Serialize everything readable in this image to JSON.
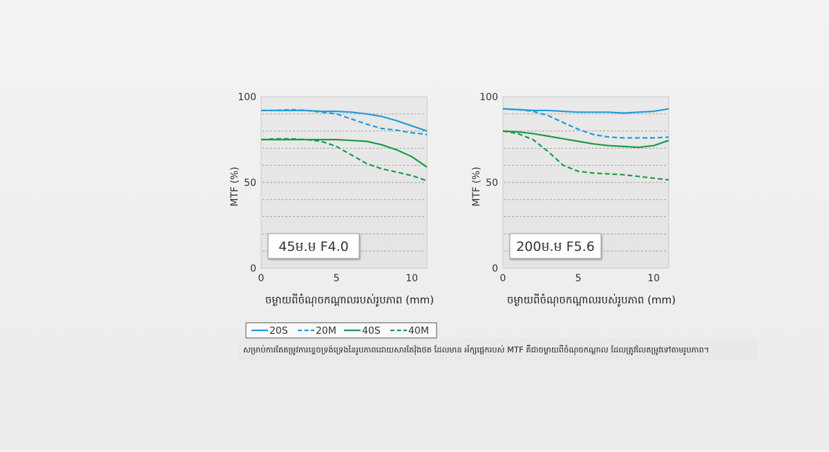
{
  "chart_data": [
    {
      "type": "line",
      "title": "45ម.ម F4.0",
      "xlabel": "ចម្ងាយពីចំណុចកណ្ដាលរបស់រូបភាព (mm)",
      "ylabel": "MTF (%)",
      "xlim": [
        0,
        11
      ],
      "ylim": [
        0,
        100
      ],
      "xticks": [
        "0",
        "5",
        "10"
      ],
      "yticks": [
        "0",
        "50",
        "100"
      ],
      "grid": true,
      "series": [
        {
          "name": "20S",
          "style": "solid",
          "color": "#1f9bd7",
          "x": [
            0,
            1,
            2,
            3,
            4,
            5,
            6,
            7,
            8,
            9,
            10,
            11
          ],
          "y": [
            92,
            92,
            92,
            92,
            91.5,
            91.5,
            91,
            90,
            88.5,
            86,
            83,
            80
          ]
        },
        {
          "name": "20M",
          "style": "dashed",
          "color": "#1f9bd7",
          "x": [
            0,
            1,
            2,
            3,
            4,
            5,
            6,
            7,
            8,
            9,
            10,
            11
          ],
          "y": [
            92,
            92,
            92.5,
            92,
            91,
            90,
            87,
            84,
            81.5,
            80.5,
            79,
            78
          ]
        },
        {
          "name": "40S",
          "style": "solid",
          "color": "#1a9a46",
          "x": [
            0,
            1,
            2,
            3,
            4,
            5,
            6,
            7,
            8,
            9,
            10,
            11
          ],
          "y": [
            75,
            75,
            75,
            75,
            75,
            75,
            74.5,
            74,
            72,
            69,
            65,
            59
          ]
        },
        {
          "name": "40M",
          "style": "dashed",
          "color": "#1a9a46",
          "x": [
            0,
            1,
            2,
            3,
            4,
            5,
            6,
            7,
            8,
            9,
            10,
            11
          ],
          "y": [
            75,
            75.5,
            75.5,
            75,
            74,
            71,
            66,
            61,
            58,
            56,
            54,
            51
          ]
        }
      ]
    },
    {
      "type": "line",
      "title": "200ម.ម F5.6",
      "xlabel": "ចម្ងាយពីចំណុចកណ្ដាលរបស់រូបភាព (mm)",
      "ylabel": "MTF (%)",
      "xlim": [
        0,
        11
      ],
      "ylim": [
        0,
        100
      ],
      "xticks": [
        "0",
        "5",
        "10"
      ],
      "yticks": [
        "0",
        "50",
        "100"
      ],
      "grid": true,
      "series": [
        {
          "name": "20S",
          "style": "solid",
          "color": "#1f9bd7",
          "x": [
            0,
            1,
            2,
            3,
            4,
            5,
            6,
            7,
            8,
            9,
            10,
            11
          ],
          "y": [
            93,
            92.5,
            92,
            92,
            91.5,
            91,
            91,
            91,
            90.5,
            91,
            91.5,
            93
          ]
        },
        {
          "name": "20M",
          "style": "dashed",
          "color": "#1f9bd7",
          "x": [
            0,
            1,
            2,
            3,
            4,
            5,
            6,
            7,
            8,
            9,
            10,
            11
          ],
          "y": [
            93,
            92.5,
            91.5,
            89,
            85,
            81,
            78,
            76.5,
            76,
            76,
            76,
            76.5
          ]
        },
        {
          "name": "40S",
          "style": "solid",
          "color": "#1a9a46",
          "x": [
            0,
            1,
            2,
            3,
            4,
            5,
            6,
            7,
            8,
            9,
            10,
            11
          ],
          "y": [
            80,
            79.5,
            78.5,
            77,
            75.5,
            74,
            72.5,
            71.5,
            71,
            70.5,
            71.5,
            74.5
          ]
        },
        {
          "name": "40M",
          "style": "dashed",
          "color": "#1a9a46",
          "x": [
            0,
            1,
            2,
            3,
            4,
            5,
            6,
            7,
            8,
            9,
            10,
            11
          ],
          "y": [
            80,
            78.5,
            75,
            68,
            60,
            56.5,
            55.5,
            55,
            54.5,
            53.5,
            52.5,
            51.5
          ]
        }
      ]
    }
  ],
  "legend": [
    {
      "label": "20S",
      "color": "#1f9bd7",
      "style": "solid"
    },
    {
      "label": "20M",
      "color": "#1f9bd7",
      "style": "dashed"
    },
    {
      "label": "40S",
      "color": "#1a9a46",
      "style": "solid"
    },
    {
      "label": "40M",
      "color": "#1a9a46",
      "style": "dashed"
    }
  ],
  "caption": "សម្រាប់ការតែតម្រូវការខ្ទេចទ្រង់ទ្រេងនៃរូបភាពដោយសារតែវ៉ុងថត ដែលមាន អ័ក្សផ្ដេករបស់ MTF គឺជាចម្ងាយពីចំណុចកណ្ដាល ដែលត្រូវលៃតម្រូវទៅតាមរូបភាព។"
}
